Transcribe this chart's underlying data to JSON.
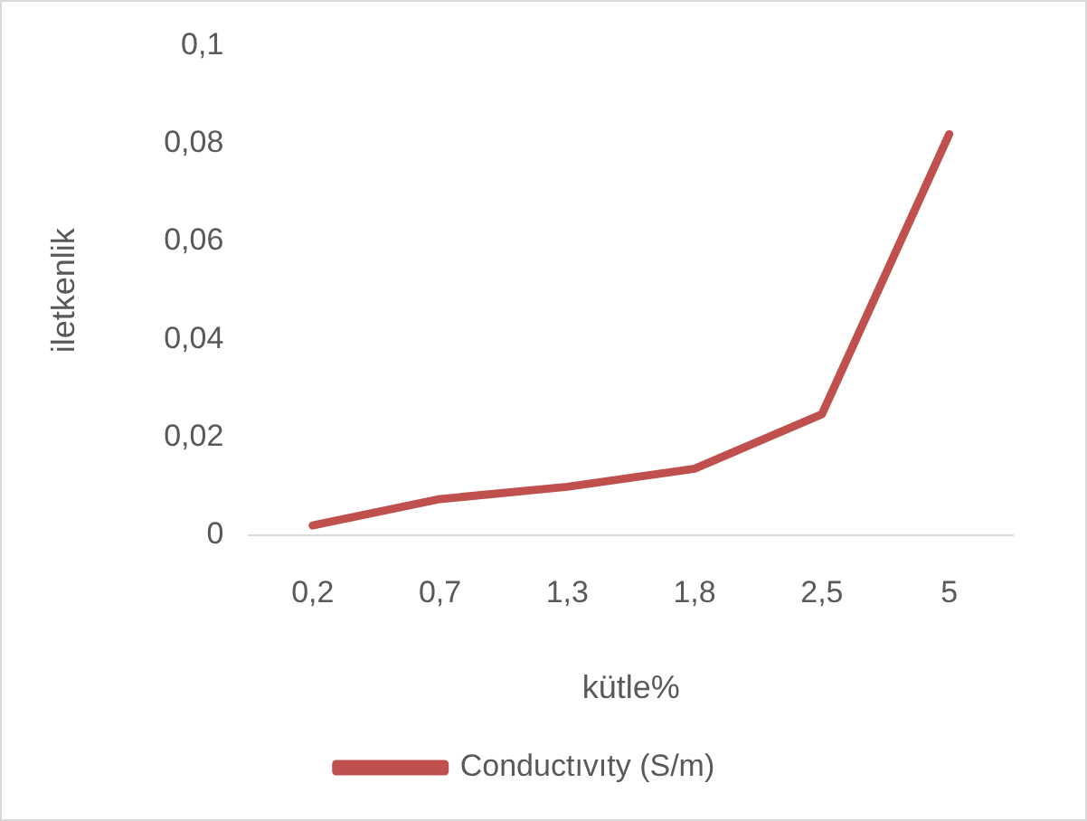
{
  "chart_data": {
    "type": "line",
    "xlabel": "kütle%",
    "ylabel": "iletkenlik",
    "categories": [
      "0,2",
      "0,7",
      "1,3",
      "1,8",
      "2,5",
      "5"
    ],
    "series": [
      {
        "name": "Conductıvıty (S/m)",
        "color": "#c0504d",
        "values": [
          0.002,
          0.0074,
          0.0099,
          0.0136,
          0.0247,
          0.0819
        ]
      }
    ],
    "ylim": [
      0,
      0.1
    ],
    "yticks": [
      {
        "value": 0,
        "label": "0"
      },
      {
        "value": 0.02,
        "label": "0,02"
      },
      {
        "value": 0.04,
        "label": "0,04"
      },
      {
        "value": 0.06,
        "label": "0,06"
      },
      {
        "value": 0.08,
        "label": "0,08"
      },
      {
        "value": 0.1,
        "label": "0,1"
      }
    ],
    "grid": false,
    "legend": "bottom",
    "marker": "none",
    "line_style": "solid"
  }
}
